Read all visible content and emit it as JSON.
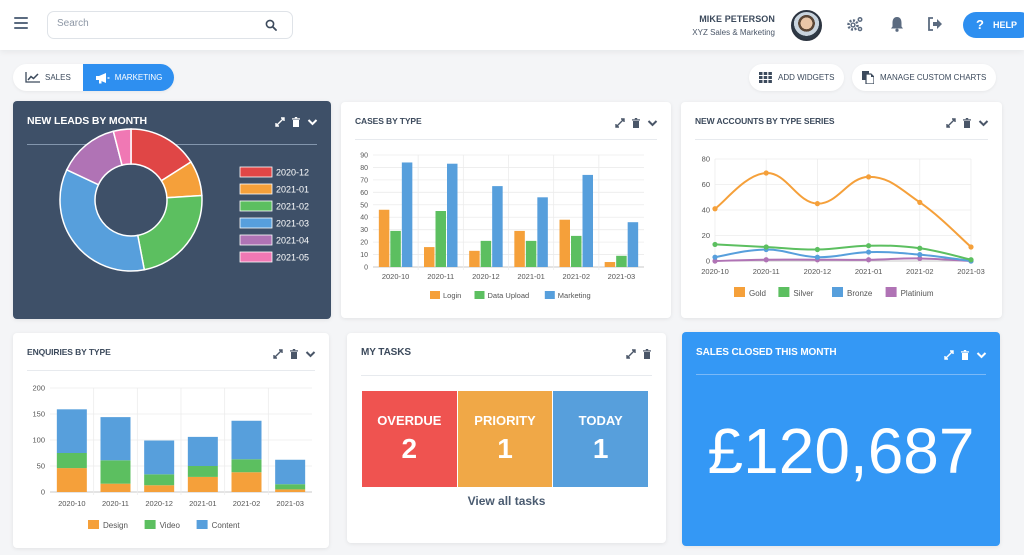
{
  "topbar": {
    "search_placeholder": "Search",
    "user_name": "MIKE PETERSON",
    "user_org": "XYZ Sales & Marketing",
    "help_label": "HELP",
    "help_glyph": "?",
    "icons": [
      "menu-icon",
      "search-icon",
      "settings-gears-icon",
      "bell-icon",
      "logout-icon",
      "help-icon"
    ]
  },
  "toolbar": {
    "tabs": [
      {
        "label": "SALES",
        "icon": "line-chart-icon",
        "active": false
      },
      {
        "label": "MARKETING",
        "icon": "megaphone-icon",
        "active": true
      }
    ],
    "add_widgets_label": "ADD WIDGETS",
    "manage_charts_label": "MANAGE CUSTOM CHARTS"
  },
  "colors": {
    "accent": "#2e8ff0",
    "dark_card": "#3e5068",
    "orange": "#f5a03a",
    "green": "#5cbf60",
    "blue": "#579fdc",
    "red": "#e84545",
    "purple": "#b073b5",
    "pink": "#f078b4",
    "task_overdue": "#ef5350",
    "task_priority": "#f0a847",
    "task_today": "#579fdc",
    "sales_card": "#3498f5"
  },
  "widgets": {
    "new_leads": {
      "title": "NEW LEADS BY MONTH"
    },
    "cases": {
      "title": "CASES BY TYPE"
    },
    "accounts": {
      "title": "NEW ACCOUNTS BY TYPE SERIES"
    },
    "enquiries": {
      "title": "ENQUIRIES BY TYPE"
    },
    "tasks": {
      "title": "MY TASKS",
      "items": [
        {
          "label": "OVERDUE",
          "count": "2"
        },
        {
          "label": "PRIORITY",
          "count": "1"
        },
        {
          "label": "TODAY",
          "count": "1"
        }
      ],
      "view_all": "View all tasks"
    },
    "sales_closed": {
      "title": "SALES CLOSED THIS MONTH",
      "value": "£120,687"
    }
  },
  "chart_data": [
    {
      "type": "pie",
      "variant": "donut",
      "title": "NEW LEADS BY MONTH",
      "categories": [
        "2020-12",
        "2021-01",
        "2021-02",
        "2021-03",
        "2021-04",
        "2021-05"
      ],
      "values": [
        16,
        8,
        23,
        35,
        14,
        4
      ],
      "colors": [
        "#e04646",
        "#f5a03a",
        "#5cbf60",
        "#579fdc",
        "#b073b5",
        "#f078b4"
      ],
      "legend_position": "right"
    },
    {
      "type": "bar",
      "title": "CASES BY TYPE",
      "categories": [
        "2020-10",
        "2020-11",
        "2020-12",
        "2021-01",
        "2021-02",
        "2021-03"
      ],
      "series": [
        {
          "name": "Login",
          "values": [
            46,
            16,
            13,
            29,
            38,
            4
          ],
          "color": "#f5a03a"
        },
        {
          "name": "Data Upload",
          "values": [
            29,
            45,
            21,
            21,
            25,
            9
          ],
          "color": "#5cbf60"
        },
        {
          "name": "Marketing",
          "values": [
            84,
            83,
            65,
            56,
            74,
            36
          ],
          "color": "#579fdc"
        }
      ],
      "yticks": [
        0,
        10,
        20,
        30,
        40,
        50,
        60,
        70,
        80,
        90
      ],
      "ylim": [
        0,
        90
      ],
      "grid": true,
      "legend_position": "bottom"
    },
    {
      "type": "line",
      "title": "NEW ACCOUNTS BY TYPE SERIES",
      "categories": [
        "2020-10",
        "2020-11",
        "2020-12",
        "2021-01",
        "2021-02",
        "2021-03"
      ],
      "series": [
        {
          "name": "Gold",
          "values": [
            41,
            69,
            45,
            66,
            46,
            11
          ],
          "color": "#f5a03a"
        },
        {
          "name": "Silver",
          "values": [
            13,
            11,
            9,
            12,
            10,
            1
          ],
          "color": "#5cbf60"
        },
        {
          "name": "Bronze",
          "values": [
            3,
            9,
            3,
            7,
            5,
            0
          ],
          "color": "#579fdc"
        },
        {
          "name": "Platinium",
          "values": [
            0,
            1,
            1,
            1,
            2,
            0
          ],
          "color": "#b073b5"
        }
      ],
      "yticks": [
        0,
        20,
        40,
        60,
        80
      ],
      "ylim": [
        0,
        80
      ],
      "grid": true,
      "smooth": true,
      "legend_position": "bottom"
    },
    {
      "type": "bar",
      "stacked": true,
      "title": "ENQUIRIES BY TYPE",
      "categories": [
        "2020-10",
        "2020-11",
        "2020-12",
        "2021-01",
        "2021-02",
        "2021-03"
      ],
      "series": [
        {
          "name": "Design",
          "values": [
            46,
            16,
            13,
            29,
            38,
            5
          ],
          "color": "#f5a03a"
        },
        {
          "name": "Video",
          "values": [
            29,
            45,
            21,
            21,
            25,
            10
          ],
          "color": "#5cbf60"
        },
        {
          "name": "Content",
          "values": [
            84,
            83,
            65,
            56,
            74,
            47
          ],
          "color": "#579fdc"
        }
      ],
      "yticks": [
        0,
        50,
        100,
        150,
        200
      ],
      "ylim": [
        0,
        200
      ],
      "grid": true,
      "legend_position": "bottom"
    }
  ]
}
